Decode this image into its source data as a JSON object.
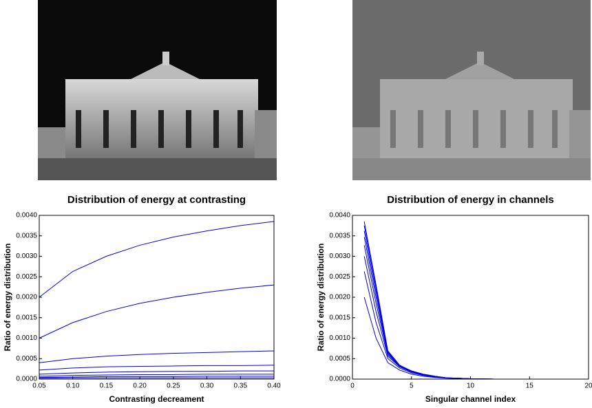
{
  "chart_data": [
    {
      "type": "line",
      "title": "Distribution of energy at contrasting",
      "x_label": "Contrasting decreament",
      "y_label": "Ratio of energy distribution",
      "x": [
        0.05,
        0.1,
        0.15,
        0.2,
        0.25,
        0.3,
        0.35,
        0.4
      ],
      "series": [
        {
          "color": "#0000dd",
          "values": [
            0.002,
            0.00263,
            0.003,
            0.00327,
            0.00347,
            0.00362,
            0.00375,
            0.00385
          ]
        },
        {
          "color": "#0000dd",
          "values": [
            0.001,
            0.00138,
            0.00165,
            0.00185,
            0.002,
            0.00212,
            0.00222,
            0.0023
          ]
        },
        {
          "color": "#0000dd",
          "values": [
            0.0004,
            0.0005,
            0.00056,
            0.0006,
            0.00063,
            0.00065,
            0.00067,
            0.00069
          ]
        },
        {
          "color": "#0000dd",
          "values": [
            0.00022,
            0.00027,
            0.0003,
            0.00031,
            0.00032,
            0.00033,
            0.00033,
            0.00034
          ]
        },
        {
          "color": "#0000dd",
          "values": [
            0.00012,
            0.00015,
            0.00017,
            0.00018,
            0.00019,
            0.00019,
            0.0002,
            0.0002
          ]
        },
        {
          "color": "#0000dd",
          "values": [
            7e-05,
            9e-05,
            0.0001,
            0.00011,
            0.00011,
            0.00012,
            0.00012,
            0.00012
          ]
        },
        {
          "color": "#0000dd",
          "values": [
            4e-05,
            5e-05,
            6e-05,
            6e-05,
            6e-05,
            7e-05,
            7e-05,
            7e-05
          ]
        },
        {
          "color": "#0000dd",
          "values": [
            2e-05,
            3e-05,
            3e-05,
            3e-05,
            3e-05,
            3e-05,
            3e-05,
            3e-05
          ]
        }
      ],
      "xlim": [
        0.05,
        0.4
      ],
      "xticks": [
        {
          "value": 0.05,
          "label": "0.05"
        },
        {
          "value": 0.1,
          "label": "0.10"
        },
        {
          "value": 0.15,
          "label": "0.15"
        },
        {
          "value": 0.2,
          "label": "0.20"
        },
        {
          "value": 0.25,
          "label": "0.25"
        },
        {
          "value": 0.3,
          "label": "0.30"
        },
        {
          "value": 0.35,
          "label": "0.35"
        },
        {
          "value": 0.4,
          "label": "0.40"
        }
      ],
      "ylim": [
        0,
        0.004
      ],
      "yticks": [
        {
          "value": 0,
          "label": "0.0000"
        },
        {
          "value": 0.0005,
          "label": "0.0005"
        },
        {
          "value": 0.001,
          "label": "0.0010"
        },
        {
          "value": 0.0015,
          "label": "0.0015"
        },
        {
          "value": 0.002,
          "label": "0.0020"
        },
        {
          "value": 0.0025,
          "label": "0.0025"
        },
        {
          "value": 0.003,
          "label": "0.0030"
        },
        {
          "value": 0.0035,
          "label": "0.0035"
        },
        {
          "value": 0.004,
          "label": "0.0040"
        }
      ]
    },
    {
      "type": "line",
      "title": "Distribution of energy in channels",
      "x_label": "Singular channel index",
      "y_label": "Ratio of energy distribution",
      "x": [
        1,
        2,
        3,
        4,
        5,
        6,
        7,
        8,
        9,
        10,
        11,
        12
      ],
      "series": [
        {
          "color": "#0000dd",
          "values": [
            0.002,
            0.001,
            0.0004,
            0.00022,
            0.00012,
            7e-05,
            4e-05,
            2e-05,
            1e-05,
            6e-06,
            3e-06,
            1e-06
          ]
        },
        {
          "color": "#0000dd",
          "values": [
            0.00263,
            0.00138,
            0.0005,
            0.00027,
            0.00015,
            9e-05,
            5e-05,
            3e-05,
            1e-05,
            6e-06,
            3e-06,
            1e-06
          ]
        },
        {
          "color": "#0000dd",
          "values": [
            0.003,
            0.00165,
            0.00056,
            0.0003,
            0.00017,
            0.0001,
            6e-05,
            3e-05,
            2e-05,
            8e-06,
            4e-06,
            1e-06
          ]
        },
        {
          "color": "#0000dd",
          "values": [
            0.00327,
            0.00185,
            0.0006,
            0.00031,
            0.00018,
            0.00011,
            6e-05,
            3e-05,
            2e-05,
            8e-06,
            4e-06,
            1e-06
          ]
        },
        {
          "color": "#0000dd",
          "values": [
            0.00347,
            0.002,
            0.00063,
            0.00032,
            0.00019,
            0.00011,
            6e-05,
            3e-05,
            2e-05,
            8e-06,
            4e-06,
            1e-06
          ]
        },
        {
          "color": "#0000dd",
          "values": [
            0.00362,
            0.00212,
            0.00065,
            0.00033,
            0.00019,
            0.00012,
            7e-05,
            3e-05,
            2e-05,
            8e-06,
            4e-06,
            1e-06
          ]
        },
        {
          "color": "#0000dd",
          "values": [
            0.00375,
            0.00222,
            0.00067,
            0.00033,
            0.0002,
            0.00012,
            7e-05,
            3e-05,
            2e-05,
            8e-06,
            4e-06,
            1e-06
          ]
        },
        {
          "color": "#0000dd",
          "values": [
            0.00385,
            0.0023,
            0.00069,
            0.00034,
            0.0002,
            0.00012,
            7e-05,
            3e-05,
            2e-05,
            8e-06,
            4e-06,
            1e-06
          ]
        }
      ],
      "xlim": [
        0,
        20
      ],
      "xticks": [
        0,
        5,
        10,
        15,
        20
      ],
      "ylim": [
        0,
        0.004
      ],
      "yticks": [
        {
          "value": 0,
          "label": "0.0000"
        },
        {
          "value": 0.0005,
          "label": "0.0005"
        },
        {
          "value": 0.001,
          "label": "0.0010"
        },
        {
          "value": 0.0015,
          "label": "0.0015"
        },
        {
          "value": 0.002,
          "label": "0.0020"
        },
        {
          "value": 0.0025,
          "label": "0.0025"
        },
        {
          "value": 0.003,
          "label": "0.0030"
        },
        {
          "value": 0.0035,
          "label": "0.0035"
        },
        {
          "value": 0.004,
          "label": "0.0040"
        }
      ]
    }
  ]
}
